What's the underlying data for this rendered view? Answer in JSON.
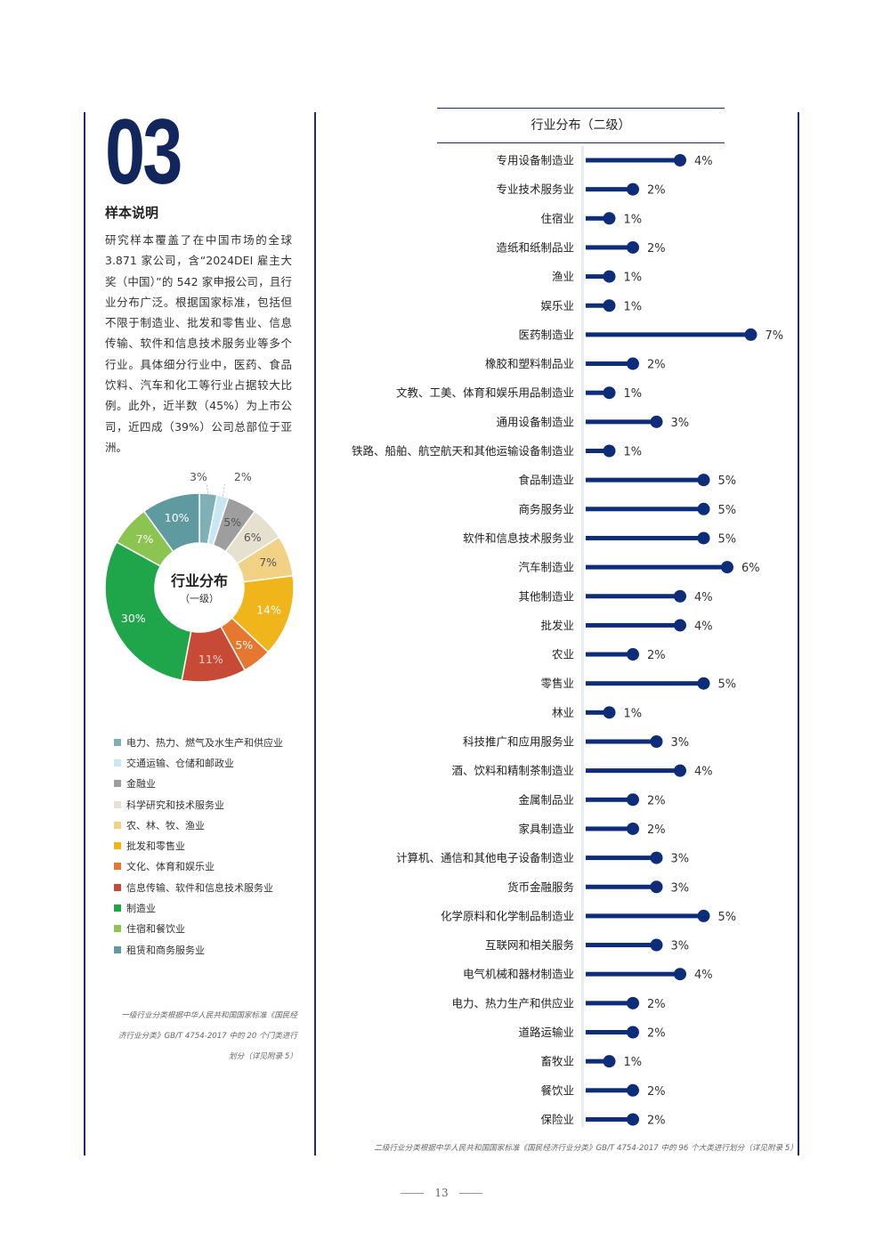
{
  "section": {
    "number": "03",
    "title": "样本说明",
    "intro": "研究样本覆盖了在中国市场的全球3.871 家公司，含“2024DEI 雇主大奖（中国）”的 542 家申报公司，且行业分布广泛。根据国家标准，包括但不限于制造业、批发和零售业、信息传输、软件和信息技术服务业等多个行业。具体细分行业中，医药、食品饮料、汽车和化工等行业占据较大比例。此外，近半数（45%）为上市公司，近四成（39%）公司总部位于亚洲。"
  },
  "chart_data": [
    {
      "type": "pie",
      "title": "行业分布",
      "subtitle": "（一级）",
      "slices": [
        {
          "label": "电力、热力、燃气及水生产和供应业",
          "value": 3,
          "color": "#7fb0b5"
        },
        {
          "label": "交通运输、仓储和邮政业",
          "value": 2,
          "color": "#c9e6f5"
        },
        {
          "label": "金融业",
          "value": 5,
          "color": "#9e9e9e"
        },
        {
          "label": "科学研究和技术服务业",
          "value": 6,
          "color": "#e6e0cf"
        },
        {
          "label": "农、林、牧、渔业",
          "value": 7,
          "color": "#f1d184"
        },
        {
          "label": "批发和零售业",
          "value": 14,
          "color": "#f1b51c"
        },
        {
          "label": "文化、体育和娱乐业",
          "value": 5,
          "color": "#e6772e"
        },
        {
          "label": "信息传输、软件和信息技术服务业",
          "value": 11,
          "color": "#c74a37"
        },
        {
          "label": "制造业",
          "value": 30,
          "color": "#1fa64b"
        },
        {
          "label": "住宿和餐饮业",
          "value": 7,
          "color": "#8cc451"
        },
        {
          "label": "租赁和商务服务业",
          "value": 10,
          "color": "#5f9aa0"
        }
      ],
      "note": "一级行业分类根据中华人民共和国国家标准《国民经济行业分类》GB/T 4754-2017 中的 20 个门类进行划分（详见附录 5）"
    },
    {
      "type": "bar",
      "title": "行业分布（二级）",
      "categories": [
        "专用设备制造业",
        "专业技术服务业",
        "住宿业",
        "造纸和纸制品业",
        "渔业",
        "娱乐业",
        "医药制造业",
        "橡胶和塑料制品业",
        "文教、工美、体育和娱乐用品制造业",
        "通用设备制造业",
        "铁路、船舶、航空航天和其他运输设备制造业",
        "食品制造业",
        "商务服务业",
        "软件和信息技术服务业",
        "汽车制造业",
        "其他制造业",
        "批发业",
        "农业",
        "零售业",
        "林业",
        "科技推广和应用服务业",
        "酒、饮料和精制茶制造业",
        "金属制品业",
        "家具制造业",
        "计算机、通信和其他电子设备制造业",
        "货币金融服务",
        "化学原料和化学制品制造业",
        "互联网和相关服务",
        "电气机械和器材制造业",
        "电力、热力生产和供应业",
        "道路运输业",
        "畜牧业",
        "餐饮业",
        "保险业"
      ],
      "values": [
        4,
        2,
        1,
        2,
        1,
        1,
        7,
        2,
        1,
        3,
        1,
        5,
        5,
        5,
        6,
        4,
        4,
        2,
        5,
        1,
        3,
        4,
        2,
        2,
        3,
        3,
        5,
        3,
        4,
        2,
        2,
        1,
        2,
        2
      ],
      "unit": "%",
      "color": "#0d2d7a",
      "note": "二级行业分类根据中华人民共和国国家标准《国民经济行业分类》GB/T 4754-2017 中的 96 个大类进行划分（详见附录 5）"
    }
  ],
  "footer": {
    "page_number": "13"
  }
}
